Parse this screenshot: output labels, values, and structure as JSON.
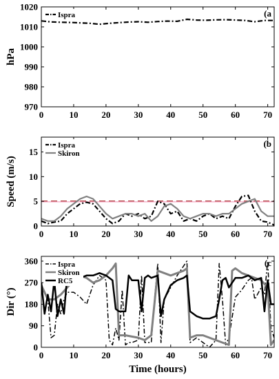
{
  "chart_data": [
    {
      "type": "line",
      "panel_label": "(a",
      "ylabel": "hPa",
      "xlabel": "",
      "xlim": [
        0,
        72
      ],
      "ylim": [
        970,
        1020
      ],
      "xticks": [
        "0",
        "10",
        "20",
        "30",
        "40",
        "50",
        "60",
        "70"
      ],
      "yticks": [
        "970",
        "980",
        "990",
        "1000",
        "1010",
        "1020"
      ],
      "legend_position": "top-left",
      "series": [
        {
          "name": "Ispra",
          "color": "#000000",
          "dash": "dash-dot",
          "x": [
            0,
            3,
            6,
            9,
            12,
            15,
            18,
            21,
            24,
            27,
            30,
            33,
            36,
            39,
            42,
            45,
            48,
            51,
            54,
            57,
            60,
            63,
            66,
            69,
            72
          ],
          "y": [
            1013,
            1012.5,
            1012.3,
            1012.2,
            1012,
            1011.8,
            1011.3,
            1011.8,
            1012.1,
            1012.4,
            1012.6,
            1012.3,
            1012.7,
            1012.9,
            1012.8,
            1013.8,
            1013.4,
            1013.3,
            1013.5,
            1013.6,
            1013.4,
            1013.2,
            1012.6,
            1013.2,
            1013.2
          ]
        }
      ]
    },
    {
      "type": "line",
      "panel_label": "(b",
      "ylabel": "Speed (m/s)",
      "xlabel": "",
      "xlim": [
        0,
        72
      ],
      "ylim": [
        0,
        18
      ],
      "xticks": [
        "0",
        "10",
        "20",
        "30",
        "40",
        "50",
        "60",
        "70"
      ],
      "yticks": [
        "0",
        "5",
        "10",
        "15"
      ],
      "legend_position": "top-left",
      "reference_lines": [
        {
          "y": 5.0,
          "color": "#a52a2a",
          "dash": "dashed"
        },
        {
          "y": 4.9,
          "color": "#f4a6c0",
          "dash": "solid"
        }
      ],
      "series": [
        {
          "name": "Ispra",
          "color": "#000000",
          "dash": "dash-dot",
          "x": [
            0,
            2,
            4,
            6,
            8,
            10,
            12,
            14,
            16,
            18,
            20,
            22,
            24,
            26,
            28,
            30,
            32,
            34,
            36,
            38,
            40,
            42,
            44,
            46,
            48,
            50,
            52,
            54,
            56,
            58,
            60,
            62,
            64,
            66,
            68,
            70,
            72
          ],
          "y": [
            1.0,
            0.5,
            0.8,
            1.0,
            2.5,
            3.5,
            4.5,
            4.8,
            4.5,
            3.0,
            1.5,
            0.5,
            1.0,
            2.5,
            2.0,
            2.5,
            1.5,
            2.0,
            5.0,
            4.5,
            2.5,
            3.0,
            1.0,
            1.5,
            1.0,
            2.0,
            2.5,
            1.5,
            2.0,
            1.5,
            4.0,
            6.0,
            6.2,
            3.0,
            1.0,
            0.8,
            0.2
          ]
        },
        {
          "name": "Skiron",
          "color": "#808080",
          "dash": "solid",
          "x": [
            0,
            2,
            4,
            6,
            8,
            10,
            12,
            14,
            16,
            18,
            20,
            22,
            24,
            26,
            28,
            30,
            32,
            34,
            36,
            38,
            40,
            42,
            44,
            46,
            48,
            50,
            52,
            54,
            56,
            58,
            60,
            62,
            64,
            66,
            68,
            70,
            72
          ],
          "y": [
            1.5,
            1.0,
            1.0,
            2.0,
            3.5,
            4.5,
            5.5,
            6.0,
            5.5,
            4.0,
            2.5,
            1.5,
            2.0,
            2.5,
            2.5,
            2.0,
            2.5,
            1.0,
            2.0,
            4.0,
            4.5,
            3.5,
            2.0,
            1.5,
            2.0,
            2.5,
            2.5,
            2.0,
            2.5,
            2.5,
            3.5,
            4.5,
            5.0,
            5.5,
            3.0,
            2.0,
            2.0
          ]
        }
      ]
    },
    {
      "type": "line",
      "panel_label": "(c",
      "ylabel": "Dir (°)",
      "xlabel": "Time (hours)",
      "xlim": [
        0,
        72
      ],
      "ylim": [
        0,
        380
      ],
      "xticks": [
        "0",
        "10",
        "20",
        "30",
        "40",
        "50",
        "60",
        "70"
      ],
      "yticks": [
        "0",
        "90",
        "180",
        "270",
        "360"
      ],
      "legend_position": "top-left",
      "series": [
        {
          "name": "Ispra",
          "color": "#000000",
          "dash": "dash-dot",
          "width": 1.5,
          "x": [
            0,
            2,
            3,
            4,
            5,
            6,
            7,
            8,
            10,
            12,
            14,
            16,
            18,
            20,
            21,
            22,
            23,
            24,
            25,
            26,
            27,
            28,
            30,
            31,
            32,
            34,
            35,
            36,
            37,
            38,
            40,
            42,
            44,
            45,
            46,
            48,
            50,
            52,
            54,
            55,
            56,
            57,
            58,
            60,
            62,
            64,
            65,
            66,
            68,
            69,
            70,
            71,
            72
          ],
          "y": [
            250,
            200,
            40,
            50,
            180,
            140,
            200,
            230,
            230,
            210,
            180,
            260,
            300,
            280,
            30,
            10,
            80,
            30,
            240,
            10,
            20,
            20,
            30,
            300,
            20,
            20,
            200,
            350,
            20,
            200,
            250,
            300,
            340,
            360,
            20,
            40,
            20,
            0,
            30,
            350,
            200,
            10,
            40,
            210,
            240,
            280,
            290,
            200,
            250,
            220,
            360,
            80,
            40
          ]
        },
        {
          "name": "Skiron",
          "color": "#808080",
          "dash": "solid",
          "width": 3,
          "x": [
            0,
            2,
            4,
            6,
            8,
            10,
            12,
            14,
            16,
            18,
            20,
            22,
            23,
            24,
            25,
            26,
            28,
            30,
            32,
            34,
            36,
            38,
            40,
            42,
            44,
            45,
            46,
            48,
            50,
            52,
            54,
            56,
            58,
            59,
            60,
            62,
            64,
            66,
            68,
            70,
            71,
            72
          ],
          "y": [
            260,
            200,
            200,
            220,
            250,
            280,
            300,
            290,
            270,
            280,
            300,
            330,
            350,
            50,
            50,
            50,
            45,
            40,
            30,
            50,
            320,
            310,
            300,
            310,
            320,
            330,
            40,
            50,
            50,
            40,
            30,
            20,
            10,
            320,
            330,
            310,
            300,
            290,
            280,
            250,
            10,
            30
          ]
        },
        {
          "name": "RC5",
          "color": "#000000",
          "dash": "solid",
          "width": 2.5,
          "x": [
            0,
            1,
            2,
            3,
            4,
            5,
            6,
            7,
            8,
            10,
            12,
            14,
            16,
            18,
            20,
            22,
            23,
            24,
            26,
            27,
            28,
            30,
            31,
            32,
            33,
            34,
            36,
            37,
            38,
            40,
            42,
            44,
            45,
            46,
            48,
            50,
            52,
            54,
            55,
            56,
            57,
            58,
            60,
            62,
            64,
            66,
            68,
            69,
            70,
            71,
            72
          ],
          "y": [
            270,
            140,
            220,
            150,
            280,
            130,
            200,
            140,
            300,
            300,
            290,
            300,
            300,
            310,
            300,
            280,
            160,
            150,
            150,
            300,
            280,
            280,
            150,
            290,
            300,
            290,
            300,
            130,
            200,
            260,
            280,
            290,
            300,
            150,
            130,
            120,
            120,
            130,
            200,
            280,
            290,
            250,
            290,
            290,
            300,
            280,
            290,
            150,
            280,
            180,
            180
          ]
        }
      ]
    }
  ]
}
